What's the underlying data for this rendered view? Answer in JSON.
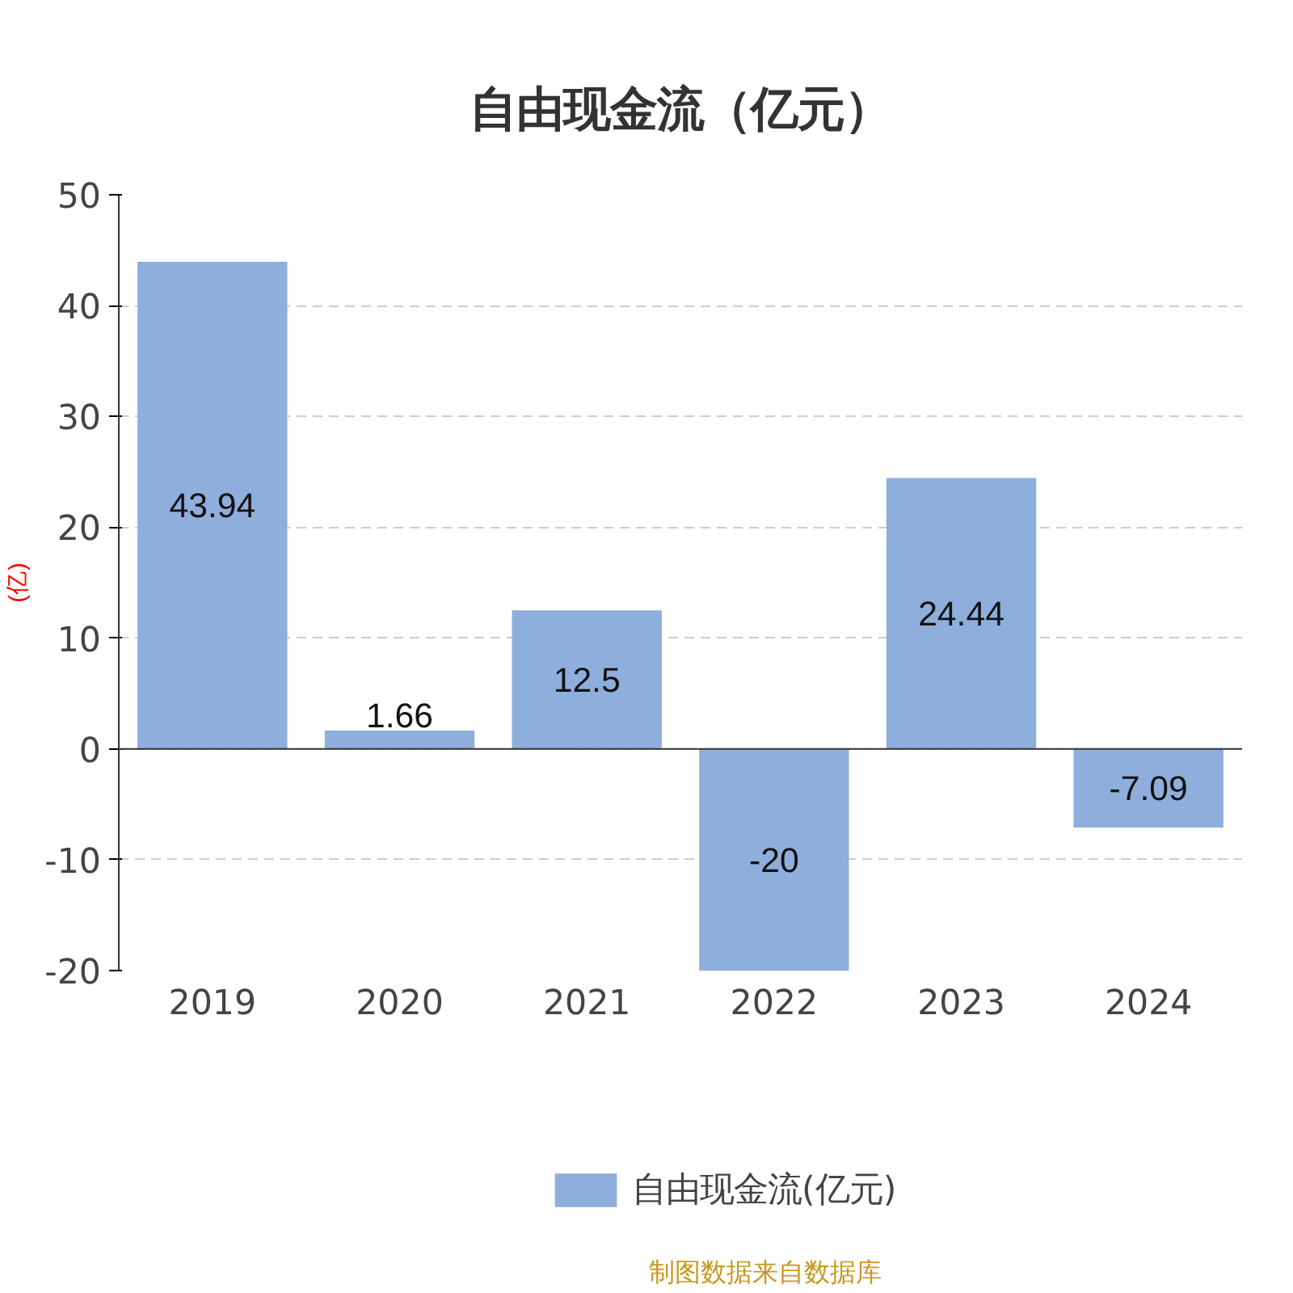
{
  "chart_data": {
    "type": "bar",
    "title": "自由现金流（亿元）",
    "ylabel": "(亿)",
    "categories": [
      "2019",
      "2020",
      "2021",
      "2022",
      "2023",
      "2024"
    ],
    "series": [
      {
        "name": "自由现金流(亿元)",
        "color": "#8eaedb",
        "values": [
          43.94,
          1.66,
          12.5,
          -20,
          24.44,
          -7.09
        ]
      }
    ],
    "ylim": [
      -20,
      50
    ],
    "yticks": [
      -20,
      -10,
      0,
      10,
      20,
      30,
      40,
      50
    ],
    "grid": "y",
    "legend": "bottom",
    "data_labels": true,
    "annotations": [
      "制图数据来自数据库"
    ]
  }
}
